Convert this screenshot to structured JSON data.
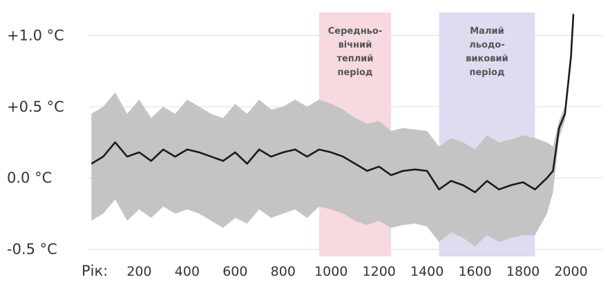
{
  "chart_data": {
    "type": "line",
    "xlabel": "Рік:",
    "ylabel": "",
    "xlim": [
      0,
      2010
    ],
    "ylim": [
      -0.55,
      1.2
    ],
    "x_ticks": [
      200,
      400,
      600,
      800,
      1000,
      1200,
      1400,
      1600,
      1800,
      2000
    ],
    "x_tick_labels": [
      "200",
      "400",
      "600",
      "800",
      "1000",
      "1200",
      "1400",
      "1600",
      "1800",
      "2000"
    ],
    "y_ticks": [
      1.0,
      0.5,
      0.0,
      -0.5
    ],
    "y_tick_labels": [
      "+1.0 °C",
      "+0.5 °C",
      "0.0 °C",
      "-0.5 °C"
    ],
    "grid": "horizontal",
    "legend": "none",
    "colors": {
      "mean_line": "#1a1a1a",
      "uncertainty_band": "#c4c4c4",
      "warm_period": "#f7d9df",
      "ice_age": "#dedcf0"
    },
    "periods": [
      {
        "label_lines": [
          "Середньо-",
          "вічний",
          "теплий",
          "період"
        ],
        "start": 950,
        "end": 1250,
        "color": "#f7d9df"
      },
      {
        "label_lines": [
          "Малий",
          "льодо-",
          "виковий",
          "період"
        ],
        "start": 1450,
        "end": 1850,
        "color": "#dedcf0"
      }
    ],
    "series": [
      {
        "x": [
          1,
          50,
          100,
          150,
          200,
          250,
          300,
          350,
          400,
          450,
          500,
          550,
          600,
          650,
          700,
          750,
          800,
          850,
          900,
          950,
          1000,
          1050,
          1100,
          1150,
          1200,
          1250,
          1300,
          1350,
          1400,
          1450,
          1500,
          1550,
          1600,
          1650,
          1700,
          1750,
          1800,
          1850,
          1900,
          1925,
          1950,
          1975,
          2000,
          2010
        ],
        "values": [
          0.1,
          0.15,
          0.25,
          0.15,
          0.18,
          0.12,
          0.2,
          0.15,
          0.2,
          0.18,
          0.15,
          0.12,
          0.18,
          0.1,
          0.2,
          0.15,
          0.18,
          0.2,
          0.15,
          0.2,
          0.18,
          0.15,
          0.1,
          0.05,
          0.08,
          0.02,
          0.05,
          0.06,
          0.05,
          -0.08,
          -0.02,
          -0.05,
          -0.1,
          -0.02,
          -0.08,
          -0.05,
          -0.03,
          -0.08,
          0.0,
          0.05,
          0.35,
          0.45,
          0.85,
          1.15
        ],
        "band_upper": [
          0.45,
          0.5,
          0.6,
          0.45,
          0.55,
          0.42,
          0.5,
          0.45,
          0.55,
          0.5,
          0.45,
          0.42,
          0.52,
          0.45,
          0.55,
          0.48,
          0.5,
          0.55,
          0.5,
          0.55,
          0.52,
          0.48,
          0.42,
          0.38,
          0.4,
          0.33,
          0.35,
          0.34,
          0.33,
          0.22,
          0.28,
          0.25,
          0.2,
          0.3,
          0.25,
          0.27,
          0.3,
          0.28,
          0.25,
          0.22,
          0.4,
          0.5,
          0.88,
          1.18
        ],
        "band_lower": [
          -0.3,
          -0.25,
          -0.15,
          -0.3,
          -0.22,
          -0.28,
          -0.2,
          -0.25,
          -0.22,
          -0.25,
          -0.3,
          -0.35,
          -0.28,
          -0.32,
          -0.22,
          -0.28,
          -0.25,
          -0.22,
          -0.28,
          -0.2,
          -0.22,
          -0.25,
          -0.3,
          -0.33,
          -0.3,
          -0.35,
          -0.33,
          -0.32,
          -0.34,
          -0.45,
          -0.38,
          -0.42,
          -0.48,
          -0.4,
          -0.45,
          -0.42,
          -0.4,
          -0.4,
          -0.25,
          -0.1,
          0.28,
          0.4,
          0.82,
          1.12
        ]
      }
    ]
  }
}
